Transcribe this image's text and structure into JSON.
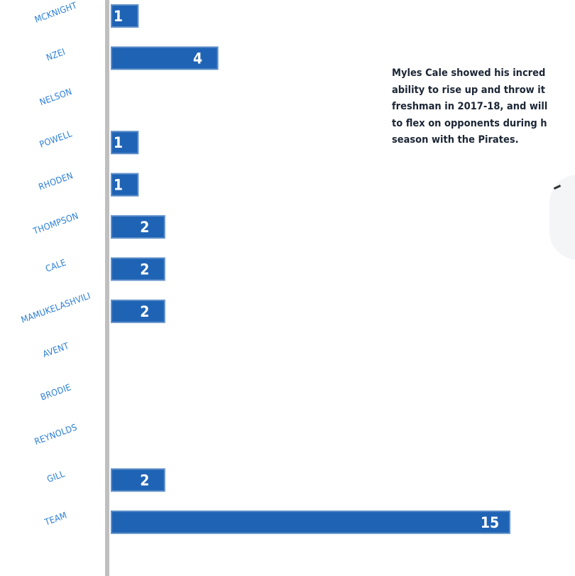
{
  "chart_data": {
    "type": "bar",
    "orientation": "horizontal",
    "categories": [
      "MCKNIGHT",
      "NZEI",
      "NELSON",
      "POWELL",
      "RHODEN",
      "THOMPSON",
      "CALE",
      "MAMUKELASHVILI",
      "AVENT",
      "BRODIE",
      "REYNOLDS",
      "GILL",
      "TEAM"
    ],
    "values": [
      1,
      4,
      0,
      1,
      1,
      2,
      2,
      2,
      0,
      0,
      0,
      2,
      15
    ],
    "value_labels": [
      "1",
      "4",
      "",
      "1",
      "1",
      "2",
      "2",
      "2",
      "",
      "",
      "",
      "2",
      "15"
    ],
    "xlim": [
      0,
      15
    ],
    "grid": false,
    "colors": {
      "bar": "#1f63b5",
      "bar_border": "#5e8fc9",
      "axis": "#bfbfbf",
      "category_label": "#2b7fd6",
      "value_label": "#ffffff"
    }
  },
  "annotation": {
    "text": "Myles Cale showed his incred\nability to rise up and throw it\nfreshman in 2017-18, and will\nto flex on opponents during h\nseason with the Pirates."
  }
}
